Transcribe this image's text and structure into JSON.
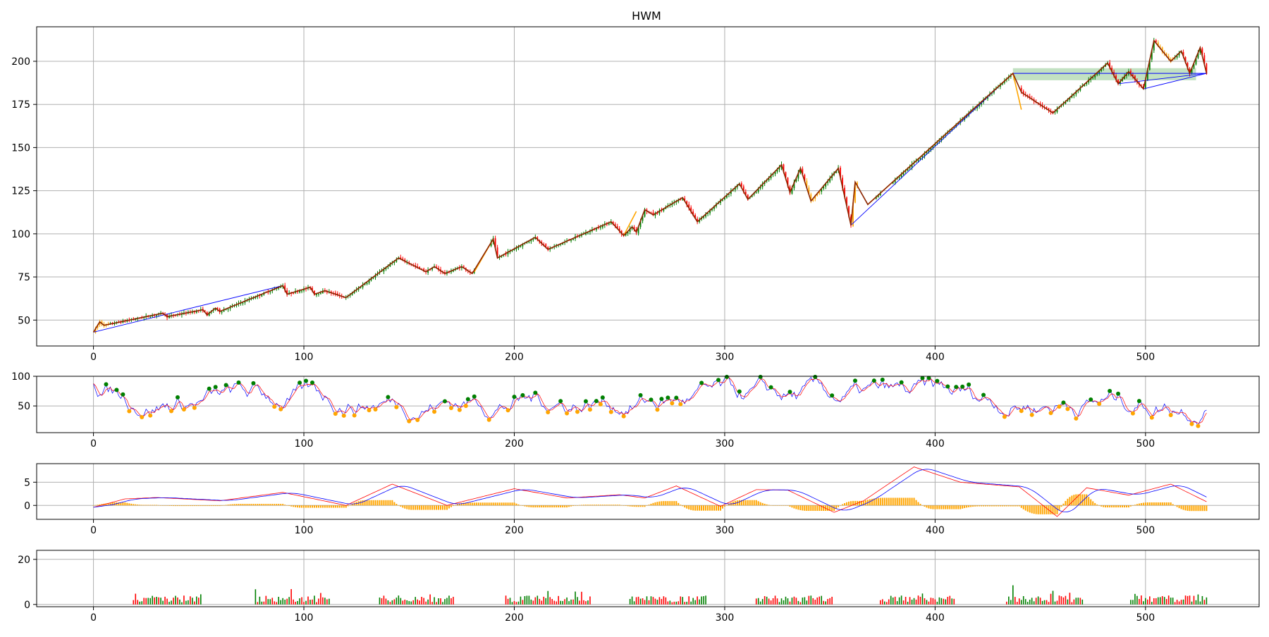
{
  "chart_data": [
    {
      "type": "candlestick",
      "title": "HWM",
      "x_ticks": [
        0,
        100,
        200,
        300,
        400,
        500
      ],
      "y_ticks": [
        50,
        75,
        100,
        125,
        150,
        175,
        200
      ],
      "xlim": [
        -27,
        554
      ],
      "ylim": [
        35,
        220
      ],
      "grid": true,
      "colors": {
        "up": "#008000",
        "down": "#ff0000",
        "highlight": "#ffa500",
        "zigzag": "#8b2500",
        "trendline": "#0000ff",
        "zone": "#90c890"
      },
      "zigzag": [
        {
          "x": 0,
          "y": 43
        },
        {
          "x": 3,
          "y": 49
        },
        {
          "x": 5,
          "y": 47
        },
        {
          "x": 33,
          "y": 54
        },
        {
          "x": 35,
          "y": 52
        },
        {
          "x": 52,
          "y": 56
        },
        {
          "x": 54,
          "y": 53
        },
        {
          "x": 58,
          "y": 57
        },
        {
          "x": 60,
          "y": 55
        },
        {
          "x": 90,
          "y": 70
        },
        {
          "x": 92,
          "y": 65
        },
        {
          "x": 103,
          "y": 69
        },
        {
          "x": 105,
          "y": 65
        },
        {
          "x": 110,
          "y": 67
        },
        {
          "x": 120,
          "y": 63
        },
        {
          "x": 145,
          "y": 86
        },
        {
          "x": 158,
          "y": 78
        },
        {
          "x": 162,
          "y": 81
        },
        {
          "x": 167,
          "y": 77
        },
        {
          "x": 175,
          "y": 81
        },
        {
          "x": 180,
          "y": 77
        },
        {
          "x": 190,
          "y": 97
        },
        {
          "x": 192,
          "y": 86
        },
        {
          "x": 210,
          "y": 98
        },
        {
          "x": 216,
          "y": 91
        },
        {
          "x": 246,
          "y": 107
        },
        {
          "x": 252,
          "y": 99
        },
        {
          "x": 256,
          "y": 104
        },
        {
          "x": 258,
          "y": 101
        },
        {
          "x": 262,
          "y": 114
        },
        {
          "x": 266,
          "y": 111
        },
        {
          "x": 280,
          "y": 121
        },
        {
          "x": 287,
          "y": 107
        },
        {
          "x": 307,
          "y": 129
        },
        {
          "x": 311,
          "y": 120
        },
        {
          "x": 327,
          "y": 140
        },
        {
          "x": 331,
          "y": 124
        },
        {
          "x": 336,
          "y": 138
        },
        {
          "x": 341,
          "y": 119
        },
        {
          "x": 354,
          "y": 138
        },
        {
          "x": 360,
          "y": 105
        },
        {
          "x": 362,
          "y": 130
        },
        {
          "x": 368,
          "y": 117
        },
        {
          "x": 437,
          "y": 193
        },
        {
          "x": 441,
          "y": 182
        },
        {
          "x": 456,
          "y": 170
        },
        {
          "x": 482,
          "y": 199
        },
        {
          "x": 487,
          "y": 187
        },
        {
          "x": 492,
          "y": 194
        },
        {
          "x": 499,
          "y": 184
        },
        {
          "x": 504,
          "y": 212
        },
        {
          "x": 512,
          "y": 200
        },
        {
          "x": 517,
          "y": 206
        },
        {
          "x": 521,
          "y": 193
        },
        {
          "x": 526,
          "y": 208
        },
        {
          "x": 529,
          "y": 193
        }
      ],
      "trendlines": [
        {
          "from": {
            "x": 0,
            "y": 43
          },
          "to": {
            "x": 90,
            "y": 70
          }
        },
        {
          "from": {
            "x": 360,
            "y": 105
          },
          "to": {
            "x": 437,
            "y": 193
          }
        },
        {
          "from": {
            "x": 437,
            "y": 193
          },
          "to": {
            "x": 529,
            "y": 193
          }
        },
        {
          "from": {
            "x": 487,
            "y": 187
          },
          "to": {
            "x": 529,
            "y": 193
          }
        },
        {
          "from": {
            "x": 499,
            "y": 184
          },
          "to": {
            "x": 529,
            "y": 193
          }
        }
      ],
      "zone": {
        "x0": 437,
        "x1": 524,
        "y0": 189,
        "y1": 196
      }
    },
    {
      "type": "line",
      "x_ticks": [
        0,
        100,
        200,
        300,
        400,
        500
      ],
      "y_ticks": [
        50,
        100
      ],
      "ylim": [
        5,
        100
      ],
      "grid": true,
      "series": [
        {
          "color": "#0000ff",
          "values": []
        },
        {
          "color": "#ff0000",
          "values": []
        }
      ],
      "markers": {
        "peak_color": "#008000",
        "trough_color": "#ffa500"
      }
    },
    {
      "type": "bar",
      "x_ticks": [
        0,
        100,
        200,
        300,
        400,
        500
      ],
      "y_ticks": [
        0,
        5
      ],
      "ylim": [
        -3,
        9
      ],
      "grid": true,
      "histogram_color": "#ffa500",
      "lines": [
        {
          "color": "#ff0000"
        },
        {
          "color": "#0000ff"
        }
      ],
      "envelope": [
        {
          "x": 0,
          "y": -0.4
        },
        {
          "x": 15,
          "y": 1.4
        },
        {
          "x": 30,
          "y": 1.7
        },
        {
          "x": 60,
          "y": 1.0
        },
        {
          "x": 90,
          "y": 2.8
        },
        {
          "x": 120,
          "y": 0
        },
        {
          "x": 142,
          "y": 4.6
        },
        {
          "x": 168,
          "y": 0
        },
        {
          "x": 200,
          "y": 3.6
        },
        {
          "x": 225,
          "y": 1.6
        },
        {
          "x": 250,
          "y": 2.3
        },
        {
          "x": 262,
          "y": 1.6
        },
        {
          "x": 277,
          "y": 4.2
        },
        {
          "x": 298,
          "y": -0.2
        },
        {
          "x": 315,
          "y": 3.4
        },
        {
          "x": 330,
          "y": 3.3
        },
        {
          "x": 352,
          "y": -1.5
        },
        {
          "x": 366,
          "y": 1.0
        },
        {
          "x": 390,
          "y": 8.3
        },
        {
          "x": 412,
          "y": 5.0
        },
        {
          "x": 440,
          "y": 4.0
        },
        {
          "x": 458,
          "y": -2.4
        },
        {
          "x": 472,
          "y": 3.8
        },
        {
          "x": 492,
          "y": 2.2
        },
        {
          "x": 512,
          "y": 4.6
        },
        {
          "x": 529,
          "y": 0.8
        }
      ]
    },
    {
      "type": "bar",
      "x_ticks": [
        0,
        100,
        200,
        300,
        400,
        500
      ],
      "y_ticks": [
        0,
        20
      ],
      "ylim": [
        -1,
        24
      ],
      "grid": true,
      "segments": [
        [
          19,
          51
        ],
        [
          77,
          112
        ],
        [
          136,
          171
        ],
        [
          196,
          236
        ],
        [
          255,
          291
        ],
        [
          315,
          351
        ],
        [
          374,
          409
        ],
        [
          434,
          470
        ],
        [
          493,
          529
        ]
      ],
      "colors": {
        "up": "#008000",
        "down": "#ff0000"
      }
    }
  ]
}
